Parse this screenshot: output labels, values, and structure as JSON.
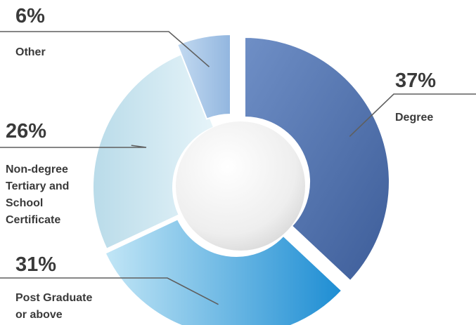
{
  "chart_data": {
    "type": "pie",
    "donut": true,
    "title": "",
    "slices": [
      {
        "label": "Degree",
        "lines": [
          "Degree"
        ],
        "value": 37,
        "percent_label": "37%",
        "color": "#4e6fa6"
      },
      {
        "label": "Post Graduate or above",
        "lines": [
          "Post Graduate",
          "or above"
        ],
        "value": 31,
        "percent_label": "31%",
        "color": "#3f99d6"
      },
      {
        "label": "Non-degree Tertiary and School Certificate",
        "lines": [
          "Non-degree",
          "Tertiary and",
          "School",
          "Certificate"
        ],
        "value": 26,
        "percent_label": "26%",
        "color": "#c4e2ee"
      },
      {
        "label": "Other",
        "lines": [
          "Other"
        ],
        "value": 6,
        "percent_label": "6%",
        "color": "#a3c4e6"
      }
    ],
    "legend": "none"
  }
}
